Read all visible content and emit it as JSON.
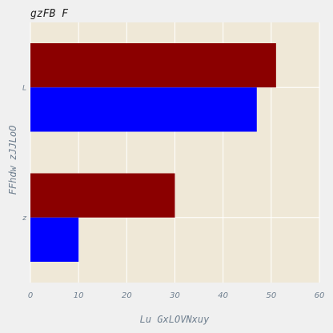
{
  "chart_data": {
    "type": "bar",
    "orientation": "horizontal",
    "title": "gzFB F",
    "xlabel": "Lu GxLOVNxuy",
    "ylabel": "FFhdw zJJLoO",
    "categories": [
      "L",
      "z"
    ],
    "series": [
      {
        "color": "#8b0000",
        "values": [
          51,
          30
        ]
      },
      {
        "color": "#0000ff",
        "values": [
          47,
          10
        ]
      }
    ],
    "xlim": [
      0,
      60
    ],
    "xticks": [
      0,
      10,
      20,
      30,
      40,
      50,
      60
    ],
    "grid": true,
    "plot_background": "#efe8d7",
    "grid_color": "#ffffff"
  }
}
